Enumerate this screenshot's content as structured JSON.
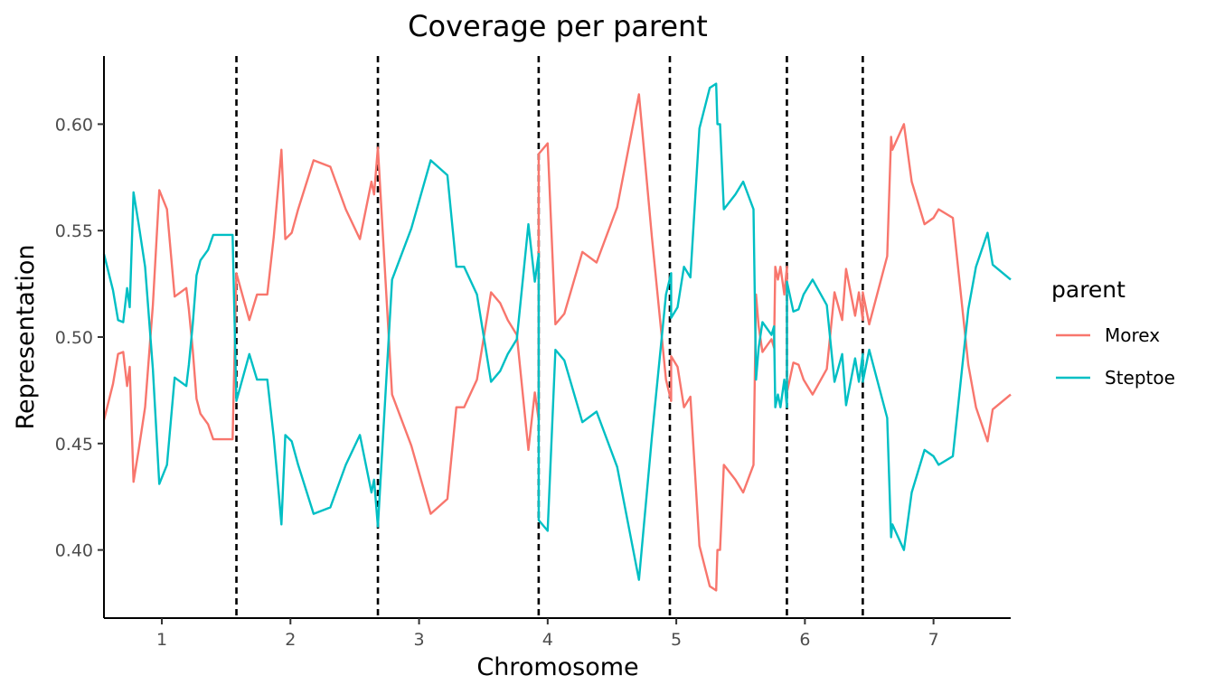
{
  "chart_data": {
    "type": "line",
    "title": "Coverage per parent",
    "xlabel": "Chromosome",
    "ylabel": "Representation",
    "xlim": [
      0.55,
      7.6
    ],
    "ylim": [
      0.368,
      0.632
    ],
    "x_ticks": [
      {
        "value": 1.0,
        "label": "1"
      },
      {
        "value": 2.0,
        "label": "2"
      },
      {
        "value": 3.0,
        "label": "3"
      },
      {
        "value": 4.0,
        "label": "4"
      },
      {
        "value": 5.0,
        "label": "5"
      },
      {
        "value": 6.0,
        "label": "6"
      },
      {
        "value": 7.0,
        "label": "7"
      }
    ],
    "y_ticks": [
      {
        "value": 0.4,
        "label": "0.40"
      },
      {
        "value": 0.45,
        "label": "0.45"
      },
      {
        "value": 0.5,
        "label": "0.50"
      },
      {
        "value": 0.55,
        "label": "0.55"
      },
      {
        "value": 0.6,
        "label": "0.60"
      }
    ],
    "vlines": [
      1.58,
      2.68,
      3.93,
      4.95,
      5.86,
      6.45
    ],
    "grid": false,
    "legend": {
      "title": "parent",
      "position": "right"
    },
    "series": [
      {
        "name": "Morex",
        "color": "#F8766D",
        "x": [
          0.55,
          0.62,
          0.66,
          0.7,
          0.73,
          0.75,
          0.78,
          0.82,
          0.87,
          0.93,
          0.98,
          1.04,
          1.1,
          1.19,
          1.21,
          1.24,
          1.27,
          1.3,
          1.36,
          1.4,
          1.55,
          1.58,
          1.58,
          1.68,
          1.74,
          1.82,
          1.87,
          1.91,
          1.93,
          1.96,
          2.01,
          2.06,
          2.18,
          2.31,
          2.43,
          2.54,
          2.63,
          2.65,
          2.68,
          2.68,
          2.79,
          2.94,
          3.09,
          3.22,
          3.29,
          3.35,
          3.45,
          3.56,
          3.63,
          3.69,
          3.76,
          3.85,
          3.9,
          3.93,
          3.93,
          4.0,
          4.06,
          4.13,
          4.27,
          4.38,
          4.54,
          4.71,
          4.81,
          4.92,
          4.96,
          4.96,
          5.01,
          5.06,
          5.11,
          5.18,
          5.26,
          5.31,
          5.32,
          5.34,
          5.37,
          5.46,
          5.52,
          5.6,
          5.62,
          5.64,
          5.67,
          5.74,
          5.76,
          5.77,
          5.79,
          5.81,
          5.84,
          5.86,
          5.86,
          5.91,
          5.95,
          5.99,
          6.06,
          6.17,
          6.23,
          6.29,
          6.32,
          6.39,
          6.42,
          6.45,
          6.45,
          6.5,
          6.64,
          6.67,
          6.68,
          6.77,
          6.83,
          6.93,
          7.0,
          7.04,
          7.15,
          7.27,
          7.33,
          7.42,
          7.46,
          7.6
        ],
        "y": [
          0.461,
          0.478,
          0.492,
          0.493,
          0.477,
          0.486,
          0.432,
          0.447,
          0.467,
          0.515,
          0.569,
          0.56,
          0.519,
          0.523,
          0.513,
          0.494,
          0.471,
          0.464,
          0.459,
          0.452,
          0.452,
          0.53,
          0.53,
          0.508,
          0.52,
          0.52,
          0.547,
          0.574,
          0.588,
          0.546,
          0.549,
          0.56,
          0.583,
          0.58,
          0.56,
          0.546,
          0.573,
          0.567,
          0.589,
          0.589,
          0.473,
          0.449,
          0.417,
          0.424,
          0.467,
          0.467,
          0.48,
          0.521,
          0.516,
          0.508,
          0.501,
          0.447,
          0.474,
          0.461,
          0.586,
          0.591,
          0.506,
          0.511,
          0.54,
          0.535,
          0.561,
          0.614,
          0.547,
          0.48,
          0.47,
          0.491,
          0.486,
          0.467,
          0.472,
          0.402,
          0.383,
          0.381,
          0.4,
          0.4,
          0.44,
          0.433,
          0.427,
          0.44,
          0.52,
          0.505,
          0.493,
          0.499,
          0.495,
          0.533,
          0.527,
          0.533,
          0.52,
          0.533,
          0.474,
          0.488,
          0.487,
          0.48,
          0.473,
          0.485,
          0.521,
          0.508,
          0.532,
          0.51,
          0.521,
          0.508,
          0.521,
          0.506,
          0.538,
          0.594,
          0.588,
          0.6,
          0.573,
          0.553,
          0.556,
          0.56,
          0.556,
          0.487,
          0.467,
          0.451,
          0.466,
          0.473
        ]
      },
      {
        "name": "Steptoe",
        "color": "#00BFC4",
        "x": [
          0.55,
          0.62,
          0.66,
          0.7,
          0.73,
          0.75,
          0.78,
          0.82,
          0.87,
          0.93,
          0.98,
          1.04,
          1.1,
          1.19,
          1.21,
          1.24,
          1.27,
          1.3,
          1.36,
          1.4,
          1.55,
          1.58,
          1.58,
          1.68,
          1.74,
          1.82,
          1.87,
          1.91,
          1.93,
          1.96,
          2.01,
          2.06,
          2.18,
          2.31,
          2.43,
          2.54,
          2.63,
          2.65,
          2.68,
          2.68,
          2.79,
          2.94,
          3.09,
          3.22,
          3.29,
          3.35,
          3.45,
          3.56,
          3.63,
          3.69,
          3.76,
          3.85,
          3.9,
          3.93,
          3.93,
          4.0,
          4.06,
          4.13,
          4.27,
          4.38,
          4.54,
          4.71,
          4.81,
          4.92,
          4.96,
          4.96,
          5.01,
          5.06,
          5.11,
          5.18,
          5.26,
          5.31,
          5.32,
          5.34,
          5.37,
          5.46,
          5.52,
          5.6,
          5.62,
          5.64,
          5.67,
          5.74,
          5.76,
          5.77,
          5.79,
          5.81,
          5.84,
          5.86,
          5.86,
          5.91,
          5.95,
          5.99,
          6.06,
          6.17,
          6.23,
          6.29,
          6.32,
          6.39,
          6.42,
          6.45,
          6.45,
          6.5,
          6.64,
          6.67,
          6.68,
          6.77,
          6.83,
          6.93,
          7.0,
          7.04,
          7.15,
          7.27,
          7.33,
          7.42,
          7.46,
          7.6
        ],
        "y": [
          0.539,
          0.522,
          0.508,
          0.507,
          0.523,
          0.514,
          0.568,
          0.553,
          0.533,
          0.485,
          0.431,
          0.44,
          0.481,
          0.477,
          0.487,
          0.506,
          0.529,
          0.536,
          0.541,
          0.548,
          0.548,
          0.47,
          0.47,
          0.492,
          0.48,
          0.48,
          0.453,
          0.426,
          0.412,
          0.454,
          0.451,
          0.44,
          0.417,
          0.42,
          0.44,
          0.454,
          0.427,
          0.433,
          0.411,
          0.411,
          0.527,
          0.551,
          0.583,
          0.576,
          0.533,
          0.533,
          0.52,
          0.479,
          0.484,
          0.492,
          0.499,
          0.553,
          0.526,
          0.539,
          0.414,
          0.409,
          0.494,
          0.489,
          0.46,
          0.465,
          0.439,
          0.386,
          0.453,
          0.52,
          0.53,
          0.509,
          0.514,
          0.533,
          0.528,
          0.598,
          0.617,
          0.619,
          0.6,
          0.6,
          0.56,
          0.567,
          0.573,
          0.56,
          0.48,
          0.495,
          0.507,
          0.501,
          0.505,
          0.467,
          0.473,
          0.467,
          0.48,
          0.467,
          0.526,
          0.512,
          0.513,
          0.52,
          0.527,
          0.515,
          0.479,
          0.492,
          0.468,
          0.49,
          0.479,
          0.492,
          0.479,
          0.494,
          0.462,
          0.406,
          0.412,
          0.4,
          0.427,
          0.447,
          0.444,
          0.44,
          0.444,
          0.513,
          0.533,
          0.549,
          0.534,
          0.527
        ]
      }
    ]
  }
}
